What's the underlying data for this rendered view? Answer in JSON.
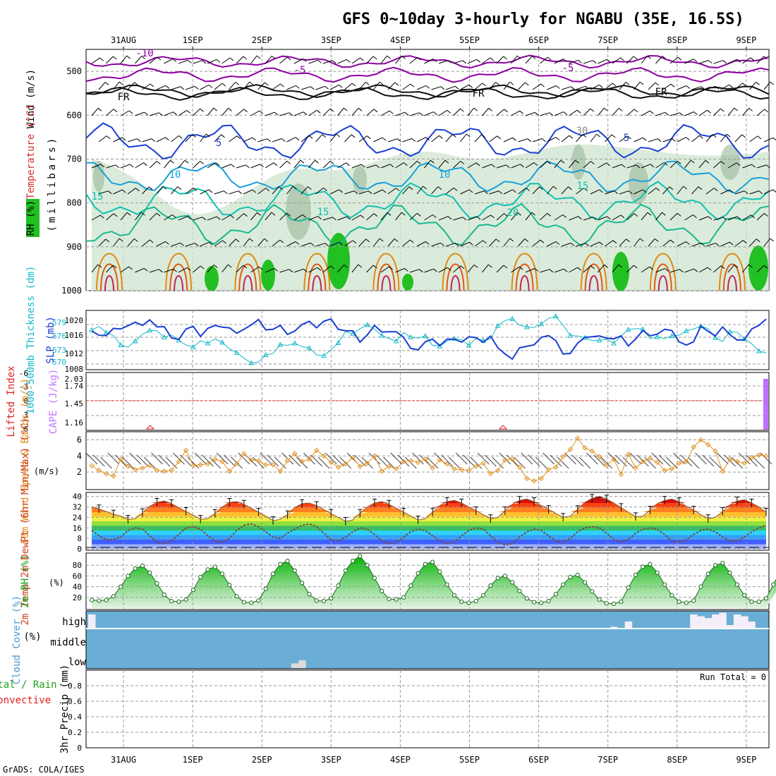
{
  "title": "GFS 0~10day 3-hourly for NGABU (35E, 16.5S)",
  "footer": "GrADS: COLA/IGES",
  "dates": [
    "31AUG",
    "1SEP",
    "2SEP",
    "3SEP",
    "4SEP",
    "5SEP",
    "6SEP",
    "7SEP",
    "8SEP",
    "9SEP"
  ],
  "colors": {
    "purple": "#8c00a0",
    "blue": "#1a3fd0",
    "cyan": "#18a0d8",
    "teal": "#10c0b0",
    "orange": "#e08a10",
    "grid": "#999999",
    "slp": "#1a3fd0",
    "thick": "#10b8c8",
    "wind10": "#e09020",
    "cape": "#c070ff",
    "li": "#e02020",
    "rh": "#1ea01e",
    "cloud": "#6aaed6"
  },
  "chart_data": [
    {
      "type": "contour",
      "panel": "upper_air",
      "ylabel": "(millibars)",
      "side_labels": [
        "Wind (m/s)",
        "Temperature (°C)",
        "RH (%)"
      ],
      "y_ticks": [
        500,
        600,
        700,
        800,
        900,
        1000
      ],
      "ylim": [
        450,
        1000
      ],
      "contour_labels": [
        "-10",
        "-5",
        "-5",
        "FR",
        "FR",
        "FR",
        "5",
        "5",
        "30",
        "10",
        "10",
        "15",
        "15",
        "15",
        "20"
      ]
    },
    {
      "type": "line",
      "panel": "thickness_slp",
      "ylabel_left": "1000-500mb Thickness (dm)",
      "ylabel_right": "SLP (mb)",
      "y_ticks_left": [
        570,
        573,
        576,
        579
      ],
      "y_ticks_right": [
        1008,
        1012,
        1016,
        1020
      ],
      "series": [
        {
          "name": "SLP (mb)",
          "values": [
            1018.0,
            1016.6,
            1016.5,
            1018.9,
            1018.7,
            1019.8,
            1021.0,
            1019.9,
            1021.8,
            1019.4,
            1019.5,
            1015.7,
            1015.2,
            1018.7,
            1019.6,
            1016.2,
            1018.9,
            1019.9,
            1019.3,
            1019.1,
            1017.3,
            1018.6,
            1020.1,
            1021.9,
            1018.4,
            1018.6,
            1019.9,
            1016.9,
            1018.0,
            1020.2,
            1021.3,
            1019.1,
            1021.3,
            1022.1,
            1018.6,
            1018.1,
            1018.1,
            1014.3,
            1016.7,
            1019.9,
            1017.7,
            1017.8,
            1017.8,
            1015.9,
            1012.2,
            1011.7,
            1014.4,
            1015.3,
            1013.1,
            1015.3,
            1015.3,
            1014.3,
            1016.1,
            1015.8,
            1014.2,
            1016.3,
            1012.4,
            1010.3,
            1008.6,
            1012.4,
            1012.9,
            1013.4,
            1015.9,
            1016.5,
            1014.8,
            1010.3,
            1010.5,
            1013.9,
            1015.9,
            1016.1,
            1016.4,
            1015.6,
            1015.4,
            1016.4,
            1013.0,
            1015.3,
            1018.2,
            1016.4,
            1017.0,
            1018.6,
            1018.2,
            1014.4,
            1013.3,
            1014.4,
            1019.7,
            1017.9,
            1016.4,
            1019.4,
            1016.8,
            1015.0,
            1015.1,
            1018.7,
            1019.9,
            1022.0
          ]
        },
        {
          "name": "Thickness (dm)",
          "values": [
            577.1,
            577.9,
            576.5,
            575.8,
            573.6,
            573.1,
            574.5,
            576.1,
            577.0,
            576.9,
            575.4,
            575.9,
            574.7,
            573.6,
            573.1,
            574.6,
            574.0,
            575.0,
            574.2,
            572.7,
            571.8,
            570.5,
            569.4,
            569.6,
            571.3,
            571.6,
            573.7,
            573.5,
            574.0,
            573.2,
            572.9,
            571.3,
            571.1,
            572.5,
            574.1,
            576.7,
            576.2,
            577.4,
            578.3,
            577.3,
            575.8,
            575.1,
            574.5,
            576.5,
            575.4,
            575.2,
            575.7,
            573.5,
            573.3,
            574.5,
            575.1,
            574.8,
            573.5,
            575.1,
            574.6,
            575.0,
            578.1,
            579.3,
            579.7,
            578.2,
            577.8,
            577.7,
            578.5,
            579.8,
            580.3,
            578.2,
            575.8,
            575.7,
            575.3,
            574.6,
            574.7,
            574.9,
            574.0,
            575.7,
            577.2,
            577.4,
            577.3,
            575.1,
            575.5,
            575.1,
            575.7,
            575.9,
            576.9,
            577.3,
            578.0,
            577.4,
            575.3,
            574.4,
            576.7,
            576.6,
            575.0,
            573.9,
            572.2,
            571.7
          ]
        }
      ]
    },
    {
      "type": "bar",
      "panel": "cape_li",
      "ylabel_left": "Lifted Index",
      "ylabel_right": "CAPE (J/kg)",
      "y_ticks_left": [
        "-6",
        "-3",
        "0",
        "3",
        "6"
      ],
      "y_ticks_right": [
        "1.16",
        "1.45",
        "1.74",
        "2.03"
      ],
      "series": [
        {
          "name": "CAPE",
          "values": [
            0,
            0,
            0,
            0,
            0,
            0,
            0,
            0,
            0,
            0,
            0,
            0,
            0,
            0,
            0,
            0,
            0,
            0,
            0,
            0,
            0,
            0,
            0,
            0,
            0,
            0,
            0,
            0,
            0,
            0,
            0,
            0,
            0,
            0,
            0,
            0,
            0,
            0,
            0,
            0,
            0,
            0,
            0,
            0,
            0,
            0,
            0,
            0,
            0,
            0,
            0,
            0,
            0,
            0,
            0,
            0,
            0,
            0,
            0,
            0,
            0,
            0,
            0,
            0,
            0,
            0,
            0,
            0,
            0,
            0,
            0,
            0,
            0,
            0,
            0,
            0,
            0,
            0,
            0,
            0,
            0,
            0,
            0,
            0,
            0,
            0,
            0,
            0,
            0,
            0,
            0,
            0,
            0,
            2.03
          ]
        }
      ]
    },
    {
      "type": "line",
      "panel": "wind10m",
      "ylabel": "10m Wind Speed & Barbs (m/s)",
      "y_ticks": [
        2,
        4,
        6
      ],
      "ylim": [
        0,
        7
      ],
      "series": [
        {
          "name": "10m Wind Speed",
          "values": [
            2.8,
            2.2,
            1.8,
            1.5,
            3.6,
            2.7,
            2.3,
            2.5,
            2.8,
            2.2,
            2.1,
            2.2,
            3.3,
            4.7,
            2.8,
            2.9,
            3.0,
            3.6,
            3.3,
            2.1,
            3.0,
            4.3,
            3.5,
            3.4,
            2.9,
            2.9,
            2.1,
            3.4,
            4.3,
            3.3,
            3.6,
            4.7,
            4.0,
            3.2,
            2.6,
            3.0,
            3.8,
            2.7,
            3.1,
            4.0,
            2.1,
            2.7,
            2.4,
            3.3,
            3.4,
            3.2,
            3.6,
            2.5,
            3.5,
            3.0,
            2.4,
            2.3,
            2.2,
            2.7,
            3.1,
            1.8,
            2.2,
            3.5,
            3.6,
            2.6,
            1.2,
            0.9,
            1.2,
            2.3,
            2.6,
            3.9,
            4.8,
            6.2,
            5.0,
            4.6,
            3.9,
            2.8,
            3.6,
            1.7,
            4.2,
            2.5,
            3.3,
            3.7,
            3.2,
            2.2,
            2.4,
            3.1,
            3.3,
            5.1,
            6.0,
            5.4,
            4.6,
            2.1,
            3.6,
            3.3,
            3.1,
            3.8,
            4.1,
            4.0
          ]
        }
      ]
    },
    {
      "type": "area",
      "panel": "temp2m",
      "ylabel": "2m Temp 2m DewPt (6hr Min/Max) (°C)",
      "y_ticks": [
        0,
        8,
        16,
        24,
        32,
        40
      ],
      "ylim": [
        0,
        42
      ],
      "series": [
        {
          "name": "2m Temp",
          "values": [
            32.0,
            30.5,
            28.5,
            26.5,
            25.0,
            22.5,
            23.0,
            27.5,
            32.5,
            35.5,
            36.5,
            34.5,
            31.5,
            28.5,
            25.5,
            22.5,
            23.0,
            27.0,
            32.0,
            35.5,
            36.0,
            34.0,
            31.0,
            28.0,
            25.0,
            21.5,
            22.5,
            26.0,
            31.5,
            34.5,
            35.0,
            33.0,
            30.0,
            27.0,
            24.0,
            21.0,
            22.0,
            27.0,
            32.0,
            35.0,
            36.0,
            34.0,
            31.0,
            28.0,
            25.0,
            22.0,
            23.0,
            28.0,
            33.0,
            36.0,
            37.0,
            35.0,
            32.0,
            29.0,
            26.0,
            23.0,
            24.0,
            29.0,
            34.0,
            37.0,
            38.0,
            36.0,
            33.0,
            30.0,
            27.0,
            24.0,
            25.0,
            30.0,
            35.5,
            38.5,
            40.0,
            38.0,
            35.0,
            31.5,
            28.0,
            24.5,
            25.0,
            29.5,
            34.5,
            37.0,
            38.0,
            36.0,
            32.5,
            29.5,
            26.0,
            23.0,
            24.0,
            28.5,
            33.5,
            36.5,
            37.5,
            35.0,
            32.0,
            28.0
          ]
        },
        {
          "name": "2m DewPt",
          "values": [
            14.0,
            10.0,
            7.0,
            7.0,
            9.0,
            14.0,
            16.0,
            15.0,
            10.0,
            5.0,
            4.0,
            6.0,
            11.0,
            16.0,
            17.0,
            15.0,
            10.0,
            6.0,
            5.0,
            8.0,
            14.0,
            18.0,
            19.0,
            17.0,
            13.0,
            9.0,
            8.0,
            12.0,
            15.0,
            18.0,
            19.0,
            17.0,
            12.0,
            7.0,
            6.0,
            9.0,
            13.0,
            16.0,
            15.0,
            11.0,
            6.0,
            4.0,
            5.0,
            9.0,
            13.0,
            15.0,
            14.0,
            10.0,
            6.0,
            4.0,
            5.0,
            10.0,
            14.0,
            16.0,
            15.0,
            10.0,
            5.0,
            3.0,
            4.0,
            9.0,
            13.0,
            15.0,
            14.0,
            10.0,
            6.0,
            5.0,
            8.0,
            13.0,
            16.0,
            17.0,
            16.0,
            12.0,
            7.0,
            5.0,
            7.0,
            12.0,
            15.0,
            16.0,
            15.0,
            11.0,
            6.0,
            5.0,
            7.0,
            11.0,
            14.0,
            15.0,
            13.0,
            9.0,
            6.0,
            6.0,
            9.0,
            13.0,
            16.0,
            18.0
          ]
        }
      ]
    },
    {
      "type": "area",
      "panel": "rh2m",
      "ylabel": "2m RH (%)",
      "y_ticks": [
        20,
        40,
        60,
        80
      ],
      "ylim": [
        0,
        100
      ],
      "series": [
        {
          "name": "2m RH",
          "values": [
            15,
            14,
            15,
            22,
            40,
            60,
            74,
            79,
            66,
            46,
            25,
            13,
            12,
            16,
            34,
            58,
            72,
            77,
            64,
            43,
            22,
            11,
            10,
            14,
            36,
            64,
            82,
            88,
            70,
            47,
            26,
            14,
            13,
            18,
            42,
            70,
            88,
            97,
            80,
            56,
            32,
            17,
            16,
            20,
            42,
            65,
            82,
            86,
            68,
            44,
            24,
            12,
            10,
            13,
            24,
            42,
            56,
            60,
            48,
            32,
            18,
            11,
            10,
            13,
            26,
            44,
            58,
            62,
            48,
            31,
            16,
            9,
            8,
            12,
            38,
            62,
            77,
            82,
            66,
            44,
            24,
            12,
            10,
            14,
            40,
            64,
            80,
            84,
            66,
            44,
            24,
            12,
            12,
            18,
            44,
            70,
            86,
            88
          ]
        }
      ]
    },
    {
      "type": "bar",
      "panel": "cloud_cover",
      "ylabel": "Cloud Cover (%)",
      "y_ticks": [
        "high",
        "middle",
        "low"
      ],
      "series": [
        {
          "name": "high",
          "values": [
            80,
            0,
            0,
            0,
            0,
            0,
            0,
            0,
            0,
            0,
            0,
            0,
            0,
            0,
            0,
            0,
            0,
            0,
            0,
            0,
            0,
            0,
            0,
            0,
            0,
            0,
            0,
            0,
            0,
            0,
            0,
            0,
            0,
            0,
            0,
            0,
            0,
            0,
            0,
            0,
            0,
            0,
            0,
            0,
            0,
            0,
            0,
            0,
            0,
            0,
            0,
            0,
            0,
            0,
            0,
            0,
            0,
            0,
            0,
            0,
            0,
            0,
            0,
            0,
            0,
            0,
            0,
            0,
            0,
            0,
            0,
            0,
            10,
            0,
            40,
            0,
            0,
            0,
            0,
            0,
            0,
            0,
            0,
            80,
            70,
            60,
            80,
            90,
            20,
            80,
            70,
            40,
            0,
            0
          ]
        },
        {
          "name": "low",
          "values": [
            0,
            0,
            0,
            0,
            0,
            0,
            0,
            0,
            0,
            0,
            0,
            0,
            0,
            0,
            0,
            0,
            0,
            0,
            0,
            0,
            0,
            0,
            0,
            0,
            0,
            0,
            0,
            0,
            30,
            50,
            0,
            0,
            0,
            0,
            0,
            0,
            0,
            0,
            0,
            0,
            0,
            0,
            0,
            0,
            0,
            0,
            0,
            0,
            0,
            0,
            0,
            0,
            0,
            0,
            0,
            0,
            0,
            0,
            0,
            0,
            0,
            0,
            0,
            0,
            0,
            0,
            0,
            0,
            0,
            0,
            0,
            0,
            0,
            0,
            0,
            0,
            0,
            0,
            0,
            0,
            0,
            0,
            0,
            0,
            0,
            0,
            0,
            0,
            0,
            0,
            0,
            0,
            0,
            0
          ]
        }
      ]
    },
    {
      "type": "bar",
      "panel": "precip",
      "ylabel": "3hr Precip (mm)",
      "side_labels": [
        "Total / Rain",
        "Convective"
      ],
      "y_ticks": [
        "0",
        "0.2",
        "0.4",
        "0.6",
        "0.8"
      ],
      "ylim": [
        0,
        1
      ],
      "annotation": "Run Total = 0",
      "series": [
        {
          "name": "Precip",
          "values": []
        }
      ]
    }
  ]
}
